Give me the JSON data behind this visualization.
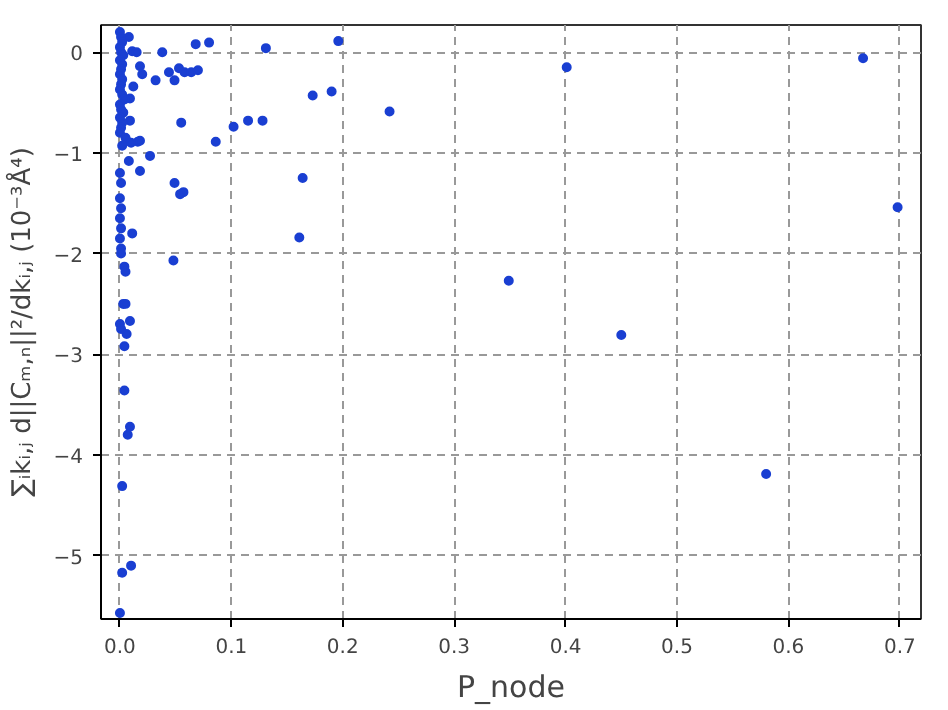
{
  "chart_data": {
    "type": "scatter",
    "xlabel": "P_node",
    "ylabel": "∑ᵢkᵢ,ⱼ d||Cₘ,ₙ||²/dkᵢ,ⱼ (10⁻³Å⁴)",
    "x": [
      0.068,
      0.08,
      0.038,
      0.131,
      0.196,
      0.044,
      0.032,
      0.049,
      0.053,
      0.058,
      0.064,
      0.07,
      0.018,
      0.02,
      0.012,
      0.173,
      0.19,
      0.055,
      0.102,
      0.115,
      0.128,
      0.086,
      0.016,
      0.027,
      0.018,
      0.164,
      0.049,
      0.057,
      0.054,
      0.011,
      0.161,
      0.048,
      0.006,
      0.008,
      0.01,
      0.009,
      0.006,
      0.009,
      0.007,
      0.01,
      0.002,
      0.0,
      0.002,
      0.004,
      0.004,
      0.003,
      0.005,
      0.004,
      0.005,
      0.0,
      0.001,
      0.0,
      0.001,
      0.0,
      0.001,
      0.0,
      0.001,
      0.001,
      0.0,
      0.001,
      0.008,
      0.011,
      0.015,
      0.009,
      0.009,
      0.018,
      0.0,
      0.001,
      0.002,
      0.0,
      0.001,
      0.003,
      0.0,
      0.002,
      0.001,
      0.0,
      0.002,
      0.001,
      0.0,
      0.002,
      0.004,
      0.0,
      0.001,
      0.003,
      0.0,
      0.002,
      0.001,
      0.0,
      0.005,
      0.002,
      0.242,
      0.401,
      0.349,
      0.45,
      0.58,
      0.667,
      0.698
    ],
    "values": [
      0.08,
      0.095,
      0.0,
      0.04,
      0.11,
      -0.2,
      -0.28,
      -0.28,
      -0.16,
      -0.2,
      -0.2,
      -0.18,
      -0.14,
      -0.22,
      -0.34,
      -0.43,
      -0.39,
      -0.7,
      -0.74,
      -0.68,
      -0.68,
      -0.89,
      -0.89,
      -1.03,
      -1.18,
      -1.25,
      -1.3,
      -1.39,
      -1.41,
      -1.8,
      -1.84,
      -2.07,
      -0.88,
      -1.08,
      -0.9,
      -2.67,
      -2.8,
      -3.72,
      -3.8,
      -5.1,
      -5.17,
      -5.57,
      -4.31,
      -3.36,
      -2.92,
      -2.5,
      -2.5,
      -2.13,
      -2.18,
      -1.2,
      -1.3,
      -1.45,
      -1.55,
      -1.65,
      -1.75,
      -1.85,
      -1.95,
      -2.0,
      -2.7,
      -2.75,
      0.15,
      0.01,
      0.0,
      -0.46,
      -0.68,
      -0.88,
      0.2,
      0.15,
      0.1,
      0.05,
      0.0,
      -0.03,
      -0.08,
      -0.12,
      -0.17,
      -0.22,
      -0.27,
      -0.32,
      -0.37,
      -0.42,
      -0.47,
      -0.52,
      -0.57,
      -0.6,
      -0.65,
      -0.7,
      -0.75,
      -0.8,
      -0.85,
      -0.93,
      -0.59,
      -0.15,
      -2.27,
      -2.81,
      -4.19,
      -0.06,
      -1.54
    ],
    "color": "#1a3fd2",
    "marker": "circle",
    "grid": true,
    "xlim": [
      -0.017,
      0.719
    ],
    "ylim": [
      -5.63,
      0.27
    ],
    "xticks": [
      {
        "value": 0,
        "label": "0.0"
      },
      {
        "value": 0.1,
        "label": "0.1"
      },
      {
        "value": 0.2,
        "label": "0.2"
      },
      {
        "value": 0.3,
        "label": "0.3"
      },
      {
        "value": 0.4,
        "label": "0.4"
      },
      {
        "value": 0.5,
        "label": "0.5"
      },
      {
        "value": 0.6,
        "label": "0.6"
      },
      {
        "value": 0.7,
        "label": "0.7"
      }
    ],
    "yticks": [
      0,
      {
        "value": -1,
        "label": "−1"
      },
      {
        "value": -2,
        "label": "−2"
      },
      {
        "value": -3,
        "label": "−3"
      },
      {
        "value": -4,
        "label": "−4"
      },
      {
        "value": -5,
        "label": "−5"
      }
    ]
  }
}
